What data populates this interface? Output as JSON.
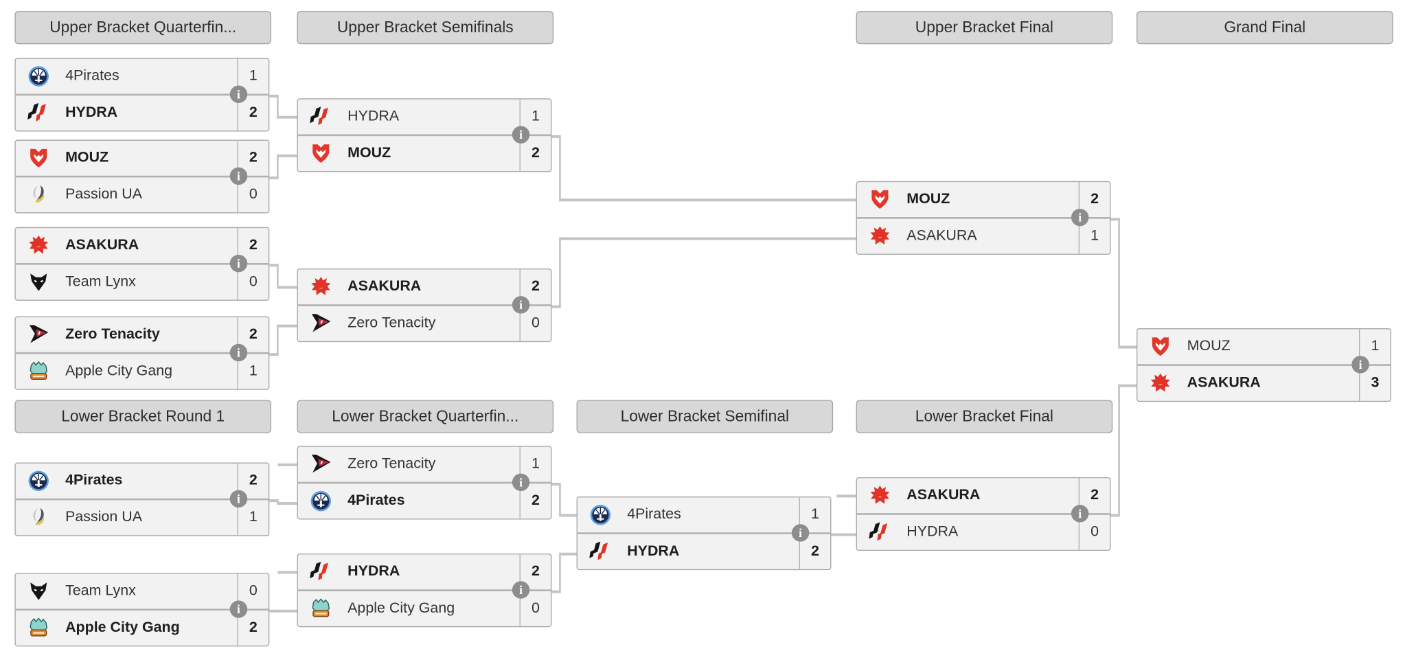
{
  "colors": {
    "page_bg": "#ffffff",
    "header_bg": "#d8d8d8",
    "header_border": "#a3a3a3",
    "header_text": "#2d2d2d",
    "box_bg": "#f2f2f2",
    "box_border": "#a6a6a6",
    "row_divider": "#b3b3b3",
    "score_divider": "#b0b0b0",
    "connector": "#c4c4c4",
    "team_text": "#333333",
    "winner_text": "#1e1e1e",
    "info_icon_bg": "#8d8d8d",
    "info_icon_text": "#ffffff"
  },
  "headers": {
    "ub_qf": "Upper Bracket Quarterfin...",
    "ub_sf": "Upper Bracket Semifinals",
    "ub_f": "Upper Bracket Final",
    "gf": "Grand Final",
    "lb_r1": "Lower Bracket Round 1",
    "lb_qf": "Lower Bracket Quarterfin...",
    "lb_sf": "Lower Bracket Semifinal",
    "lb_f": "Lower Bracket Final"
  },
  "info_icon": {
    "glyph": "i"
  },
  "logo_colors": {
    "pirates_ring": "#5f9fdd",
    "pirates_core": "#1b2a4d",
    "hydra_black": "#141414",
    "hydra_red": "#dd3526",
    "mouz_red": "#e2372b",
    "passion_gray": "#c9ccd1",
    "passion_dark": "#4a5160",
    "passion_yellow": "#d6c84f",
    "asakura_red": "#e03226",
    "lynx_black": "#141414",
    "zt_black": "#141414",
    "zt_red": "#b52b45",
    "acg_teal": "#8ed4c9",
    "acg_orange": "#dd8a2e",
    "acg_dark": "#27585e"
  },
  "matches": {
    "ub_qf_1": {
      "top": {
        "name": "4Pirates",
        "score": "1",
        "winner": false,
        "logo": "4pirates-logo"
      },
      "bottom": {
        "name": "HYDRA",
        "score": "2",
        "winner": true,
        "logo": "hydra-logo"
      }
    },
    "ub_qf_2": {
      "top": {
        "name": "MOUZ",
        "score": "2",
        "winner": true,
        "logo": "mouz-logo"
      },
      "bottom": {
        "name": "Passion UA",
        "score": "0",
        "winner": false,
        "logo": "passion-ua-logo"
      }
    },
    "ub_qf_3": {
      "top": {
        "name": "ASAKURA",
        "score": "2",
        "winner": true,
        "logo": "asakura-logo"
      },
      "bottom": {
        "name": "Team Lynx",
        "score": "0",
        "winner": false,
        "logo": "team-lynx-logo"
      }
    },
    "ub_qf_4": {
      "top": {
        "name": "Zero Tenacity",
        "score": "2",
        "winner": true,
        "logo": "zero-tenacity-logo"
      },
      "bottom": {
        "name": "Apple City Gang",
        "score": "1",
        "winner": false,
        "logo": "apple-city-gang-logo"
      }
    },
    "ub_sf_1": {
      "top": {
        "name": "HYDRA",
        "score": "1",
        "winner": false,
        "logo": "hydra-logo"
      },
      "bottom": {
        "name": "MOUZ",
        "score": "2",
        "winner": true,
        "logo": "mouz-logo"
      }
    },
    "ub_sf_2": {
      "top": {
        "name": "ASAKURA",
        "score": "2",
        "winner": true,
        "logo": "asakura-logo"
      },
      "bottom": {
        "name": "Zero Tenacity",
        "score": "0",
        "winner": false,
        "logo": "zero-tenacity-logo"
      }
    },
    "ub_f": {
      "top": {
        "name": "MOUZ",
        "score": "2",
        "winner": true,
        "logo": "mouz-logo"
      },
      "bottom": {
        "name": "ASAKURA",
        "score": "1",
        "winner": false,
        "logo": "asakura-logo"
      }
    },
    "gf": {
      "top": {
        "name": "MOUZ",
        "score": "1",
        "winner": false,
        "logo": "mouz-logo"
      },
      "bottom": {
        "name": "ASAKURA",
        "score": "3",
        "winner": true,
        "logo": "asakura-logo"
      }
    },
    "lb_r1_1": {
      "top": {
        "name": "4Pirates",
        "score": "2",
        "winner": true,
        "logo": "4pirates-logo"
      },
      "bottom": {
        "name": "Passion UA",
        "score": "1",
        "winner": false,
        "logo": "passion-ua-logo"
      }
    },
    "lb_r1_2": {
      "top": {
        "name": "Team Lynx",
        "score": "0",
        "winner": false,
        "logo": "team-lynx-logo"
      },
      "bottom": {
        "name": "Apple City Gang",
        "score": "2",
        "winner": true,
        "logo": "apple-city-gang-logo"
      }
    },
    "lb_qf_1": {
      "top": {
        "name": "Zero Tenacity",
        "score": "1",
        "winner": false,
        "logo": "zero-tenacity-logo"
      },
      "bottom": {
        "name": "4Pirates",
        "score": "2",
        "winner": true,
        "logo": "4pirates-logo"
      }
    },
    "lb_qf_2": {
      "top": {
        "name": "HYDRA",
        "score": "2",
        "winner": true,
        "logo": "hydra-logo"
      },
      "bottom": {
        "name": "Apple City Gang",
        "score": "0",
        "winner": false,
        "logo": "apple-city-gang-logo"
      }
    },
    "lb_sf": {
      "top": {
        "name": "4Pirates",
        "score": "1",
        "winner": false,
        "logo": "4pirates-logo"
      },
      "bottom": {
        "name": "HYDRA",
        "score": "2",
        "winner": true,
        "logo": "hydra-logo"
      }
    },
    "lb_f": {
      "top": {
        "name": "ASAKURA",
        "score": "2",
        "winner": true,
        "logo": "asakura-logo"
      },
      "bottom": {
        "name": "HYDRA",
        "score": "0",
        "winner": false,
        "logo": "hydra-logo"
      }
    }
  }
}
